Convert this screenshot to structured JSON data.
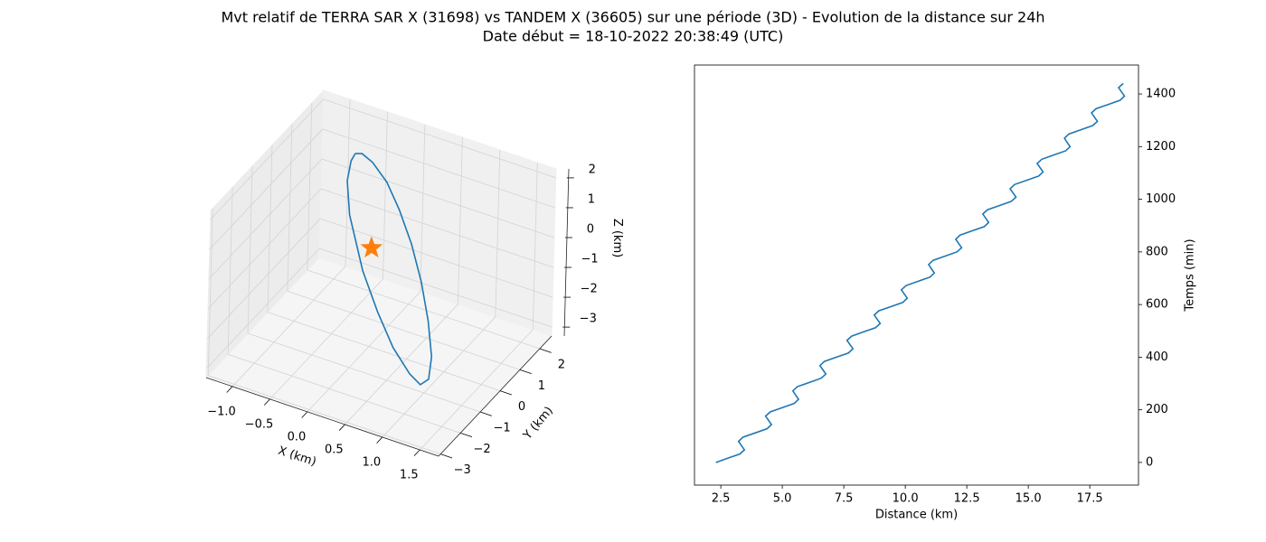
{
  "title": "Mvt relatif de TERRA SAR X (31698) vs TANDEM X (36605) sur une période (3D) - Evolution de la distance sur 24h",
  "subtitle": "Date début = 18-10-2022 20:38:49 (UTC)",
  "chart_data": [
    {
      "type": "line3d",
      "xlabel": "X (km)",
      "ylabel": "Y (km)",
      "zlabel": "Z (km)",
      "xlim": [
        -1.35,
        1.75
      ],
      "ylim": [
        -3.1,
        2.6
      ],
      "zlim": [
        -3.3,
        2.3
      ],
      "xticks": [
        {
          "value": -1.0,
          "label": "−1.0"
        },
        {
          "value": -0.5,
          "label": "−0.5"
        },
        {
          "value": 0.0,
          "label": "0.0"
        },
        0.5,
        {
          "value": 1.0,
          "label": "1.0"
        },
        1.5
      ],
      "yticks": [
        {
          "value": -3,
          "label": "−3"
        },
        {
          "value": -2,
          "label": "−2"
        },
        {
          "value": -1,
          "label": "−1"
        },
        0,
        1,
        2
      ],
      "zticks": [
        {
          "value": -3,
          "label": "−3"
        },
        {
          "value": -2,
          "label": "−2"
        },
        {
          "value": -1,
          "label": "−1"
        },
        0,
        1,
        2
      ],
      "grid": true,
      "series": [
        {
          "color": "#1f77b4",
          "marker": "none",
          "x": [
            -0.62,
            -0.53,
            -0.36,
            -0.1,
            0.16,
            0.44,
            0.7,
            0.93,
            1.1,
            1.14,
            1.05,
            0.87,
            0.56,
            0.23,
            -0.11,
            -0.48,
            -0.63,
            -0.65,
            -0.62
          ],
          "y": [
            1.46,
            1.46,
            1.35,
            1.1,
            0.76,
            0.34,
            -0.12,
            -0.61,
            -1.05,
            -1.33,
            -1.4,
            -1.26,
            -0.94,
            -0.5,
            0.01,
            0.7,
            1.12,
            1.37,
            1.46
          ],
          "z": [
            1.61,
            1.68,
            1.61,
            1.34,
            0.88,
            0.27,
            -0.45,
            -1.22,
            -1.97,
            -2.49,
            -2.7,
            -2.59,
            -2.2,
            -1.59,
            -0.87,
            0.21,
            0.93,
            1.4,
            1.61
          ]
        },
        {
          "color": "#ff7f0e",
          "marker": "star",
          "x": [
            0
          ],
          "y": [
            0
          ],
          "z": [
            0
          ]
        }
      ]
    },
    {
      "type": "line",
      "xlabel": "Distance (km)",
      "ylabel": "Temps (min)",
      "yaxis_side": "right",
      "xlim": [
        1.43,
        19.48
      ],
      "ylim": [
        -86,
        1510
      ],
      "xticks": [
        2.5,
        {
          "value": 5.0,
          "label": "5.0"
        },
        7.5,
        {
          "value": 10.0,
          "label": "10.0"
        },
        12.5,
        {
          "value": 15.0,
          "label": "15.0"
        },
        17.5
      ],
      "yticks": [
        0,
        200,
        400,
        600,
        800,
        1000,
        1200,
        1400
      ],
      "grid": false,
      "color": "#1f77b4",
      "x": [
        2.3,
        2.78,
        3.27,
        3.46,
        3.34,
        3.22,
        3.4,
        3.89,
        4.38,
        4.56,
        4.44,
        4.32,
        4.51,
        4.99,
        5.48,
        5.66,
        5.54,
        5.43,
        5.61,
        6.1,
        6.58,
        6.77,
        6.65,
        6.53,
        6.71,
        7.2,
        7.69,
        7.87,
        7.75,
        7.63,
        7.82,
        8.3,
        8.79,
        8.98,
        8.86,
        8.74,
        8.92,
        9.41,
        9.9,
        10.08,
        9.96,
        9.84,
        10.03,
        10.51,
        11.0,
        11.18,
        11.06,
        10.95,
        11.13,
        11.62,
        12.1,
        12.29,
        12.17,
        12.05,
        12.23,
        12.72,
        13.21,
        13.39,
        13.27,
        13.15,
        13.34,
        13.82,
        14.31,
        14.5,
        14.38,
        14.26,
        14.44,
        14.93,
        15.42,
        15.6,
        15.48,
        15.36,
        15.55,
        16.03,
        16.52,
        16.7,
        16.58,
        16.47,
        16.65,
        17.14,
        17.62,
        17.81,
        17.69,
        17.57,
        17.75,
        18.24,
        18.73,
        18.91,
        18.79,
        18.67,
        18.86
      ],
      "y": [
        0,
        16,
        32,
        48,
        64,
        80,
        96,
        112,
        128,
        144,
        160,
        176,
        192,
        208,
        224,
        240,
        256,
        272,
        288,
        304,
        320,
        336,
        352,
        368,
        384,
        400,
        416,
        432,
        448,
        464,
        480,
        496,
        512,
        528,
        544,
        560,
        576,
        592,
        608,
        624,
        640,
        656,
        672,
        688,
        704,
        720,
        736,
        752,
        768,
        784,
        800,
        816,
        832,
        848,
        864,
        880,
        896,
        912,
        928,
        944,
        960,
        976,
        992,
        1008,
        1024,
        1040,
        1056,
        1072,
        1088,
        1104,
        1120,
        1136,
        1152,
        1168,
        1184,
        1200,
        1216,
        1232,
        1248,
        1264,
        1280,
        1296,
        1312,
        1328,
        1344,
        1360,
        1376,
        1392,
        1408,
        1424,
        1440
      ]
    }
  ]
}
